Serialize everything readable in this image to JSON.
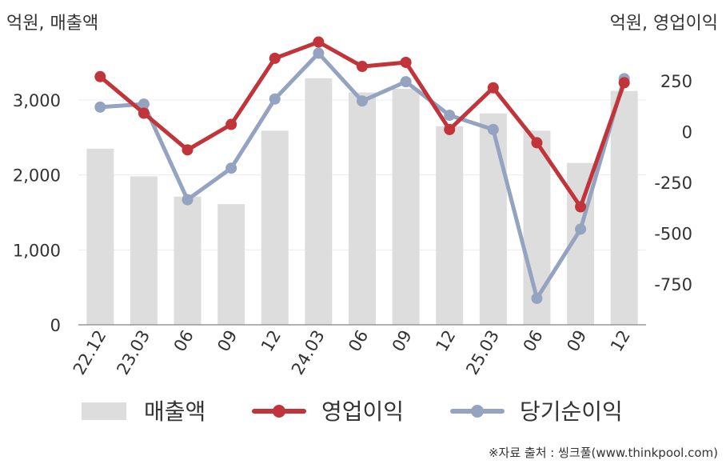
{
  "chart_data": {
    "type": "bar+line",
    "left_unit_label": "억원, 매출액",
    "right_unit_label": "억원, 영업이익",
    "categories": [
      "22.12",
      "23.03",
      "06",
      "09",
      "12",
      "24.03",
      "06",
      "09",
      "12",
      "25.03",
      "06",
      "09",
      "12"
    ],
    "left_axis": {
      "ylim": [
        0,
        3800
      ],
      "ticks": [
        0,
        1000,
        2000,
        3000
      ],
      "tick_labels": [
        "0",
        "1,000",
        "2,000",
        "3,000"
      ]
    },
    "right_axis": {
      "ylim": [
        -950,
        450
      ],
      "ticks": [
        250,
        0,
        -250,
        -500,
        -750
      ],
      "tick_labels": [
        "250",
        "0",
        "-250",
        "-500",
        "-750"
      ]
    },
    "series": [
      {
        "name": "매출액",
        "type": "bar",
        "axis": "left",
        "color": "#dddddd",
        "values": [
          2350,
          1980,
          1710,
          1610,
          2590,
          3290,
          3100,
          3150,
          2650,
          2820,
          2590,
          2160,
          3120
        ]
      },
      {
        "name": "영업이익",
        "type": "line",
        "axis": "right",
        "color": "#c0343a",
        "values": [
          270,
          90,
          -90,
          35,
          360,
          440,
          320,
          340,
          10,
          215,
          -55,
          -370,
          240
        ]
      },
      {
        "name": "당기순이익",
        "type": "line",
        "axis": "right",
        "color": "#94a3bf",
        "values": [
          120,
          135,
          -335,
          -180,
          160,
          385,
          150,
          245,
          80,
          10,
          -820,
          -480,
          260
        ]
      }
    ],
    "grid": true,
    "legend_position": "bottom"
  },
  "source_text": "※자료 출처 : 씽크풀(www.thinkpool.com)"
}
